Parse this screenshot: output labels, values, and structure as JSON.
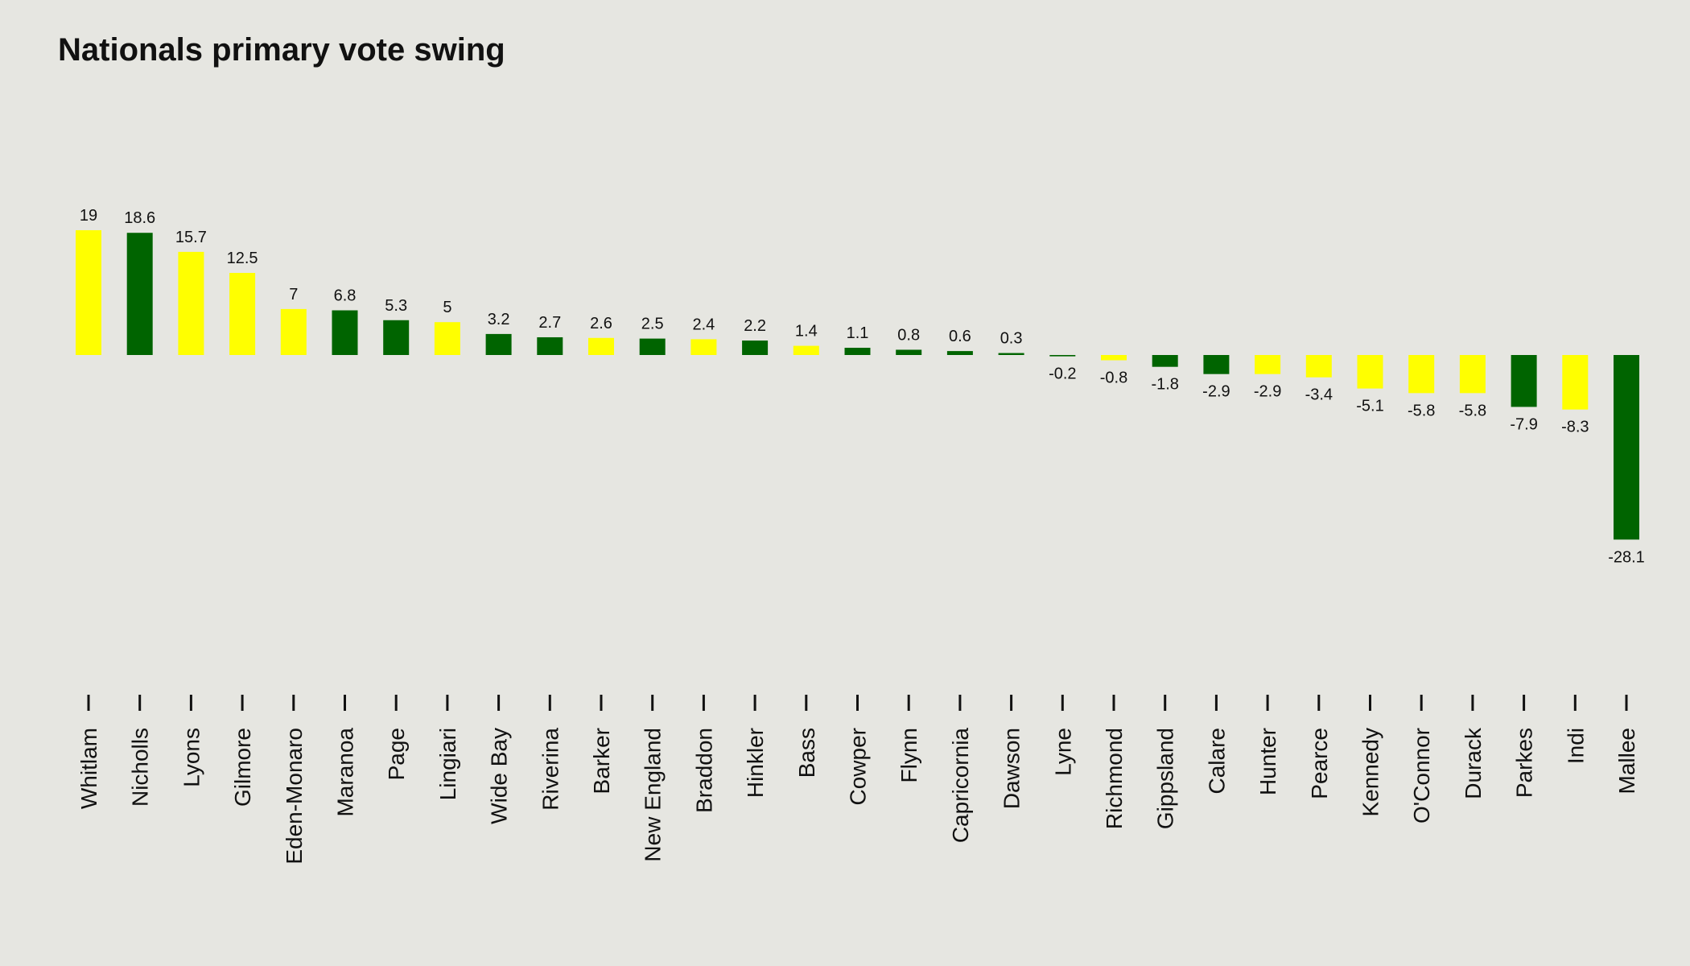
{
  "title": "Nationals primary vote swing",
  "colors": {
    "background": "#e6e6e1",
    "dark_green": "#006400",
    "yellow": "#ffff00",
    "text": "#111111"
  },
  "chart_data": {
    "type": "bar",
    "title": "Nationals primary vote swing",
    "xlabel": "",
    "ylabel": "",
    "grid": false,
    "categories": [
      "Whitlam",
      "Nicholls",
      "Lyons",
      "Gilmore",
      "Eden-Monaro",
      "Maranoa",
      "Page",
      "Lingiari",
      "Wide Bay",
      "Riverina",
      "Barker",
      "New England",
      "Braddon",
      "Hinkler",
      "Bass",
      "Cowper",
      "Flynn",
      "Capricornia",
      "Dawson",
      "Lyne",
      "Richmond",
      "Gippsland",
      "Calare",
      "Hunter",
      "Pearce",
      "Kennedy",
      "O'Connor",
      "Durack",
      "Parkes",
      "Indi",
      "Mallee"
    ],
    "values": [
      19,
      18.6,
      15.7,
      12.5,
      7,
      6.8,
      5.3,
      5,
      3.2,
      2.7,
      2.6,
      2.5,
      2.4,
      2.2,
      1.4,
      1.1,
      0.8,
      0.6,
      0.3,
      -0.2,
      -0.8,
      -1.8,
      -2.9,
      -2.9,
      -3.4,
      -5.1,
      -5.8,
      -5.8,
      -7.9,
      -8.3,
      -28.1
    ],
    "value_labels": [
      "19",
      "18.6",
      "15.7",
      "12.5",
      "7",
      "6.8",
      "5.3",
      "5",
      "3.2",
      "2.7",
      "2.6",
      "2.5",
      "2.4",
      "2.2",
      "1.4",
      "1.1",
      "0.8",
      "0.6",
      "0.3",
      "-0.2",
      "-0.8",
      "-1.8",
      "-2.9",
      "-2.9",
      "-3.4",
      "-5.1",
      "-5.8",
      "-5.8",
      "-7.9",
      "-8.3",
      "-28.1"
    ],
    "bar_colors": [
      "yellow",
      "dark_green",
      "yellow",
      "yellow",
      "yellow",
      "dark_green",
      "dark_green",
      "yellow",
      "dark_green",
      "dark_green",
      "yellow",
      "dark_green",
      "yellow",
      "dark_green",
      "yellow",
      "dark_green",
      "dark_green",
      "dark_green",
      "dark_green",
      "dark_green",
      "yellow",
      "dark_green",
      "dark_green",
      "yellow",
      "yellow",
      "yellow",
      "yellow",
      "yellow",
      "dark_green",
      "yellow",
      "dark_green"
    ]
  }
}
